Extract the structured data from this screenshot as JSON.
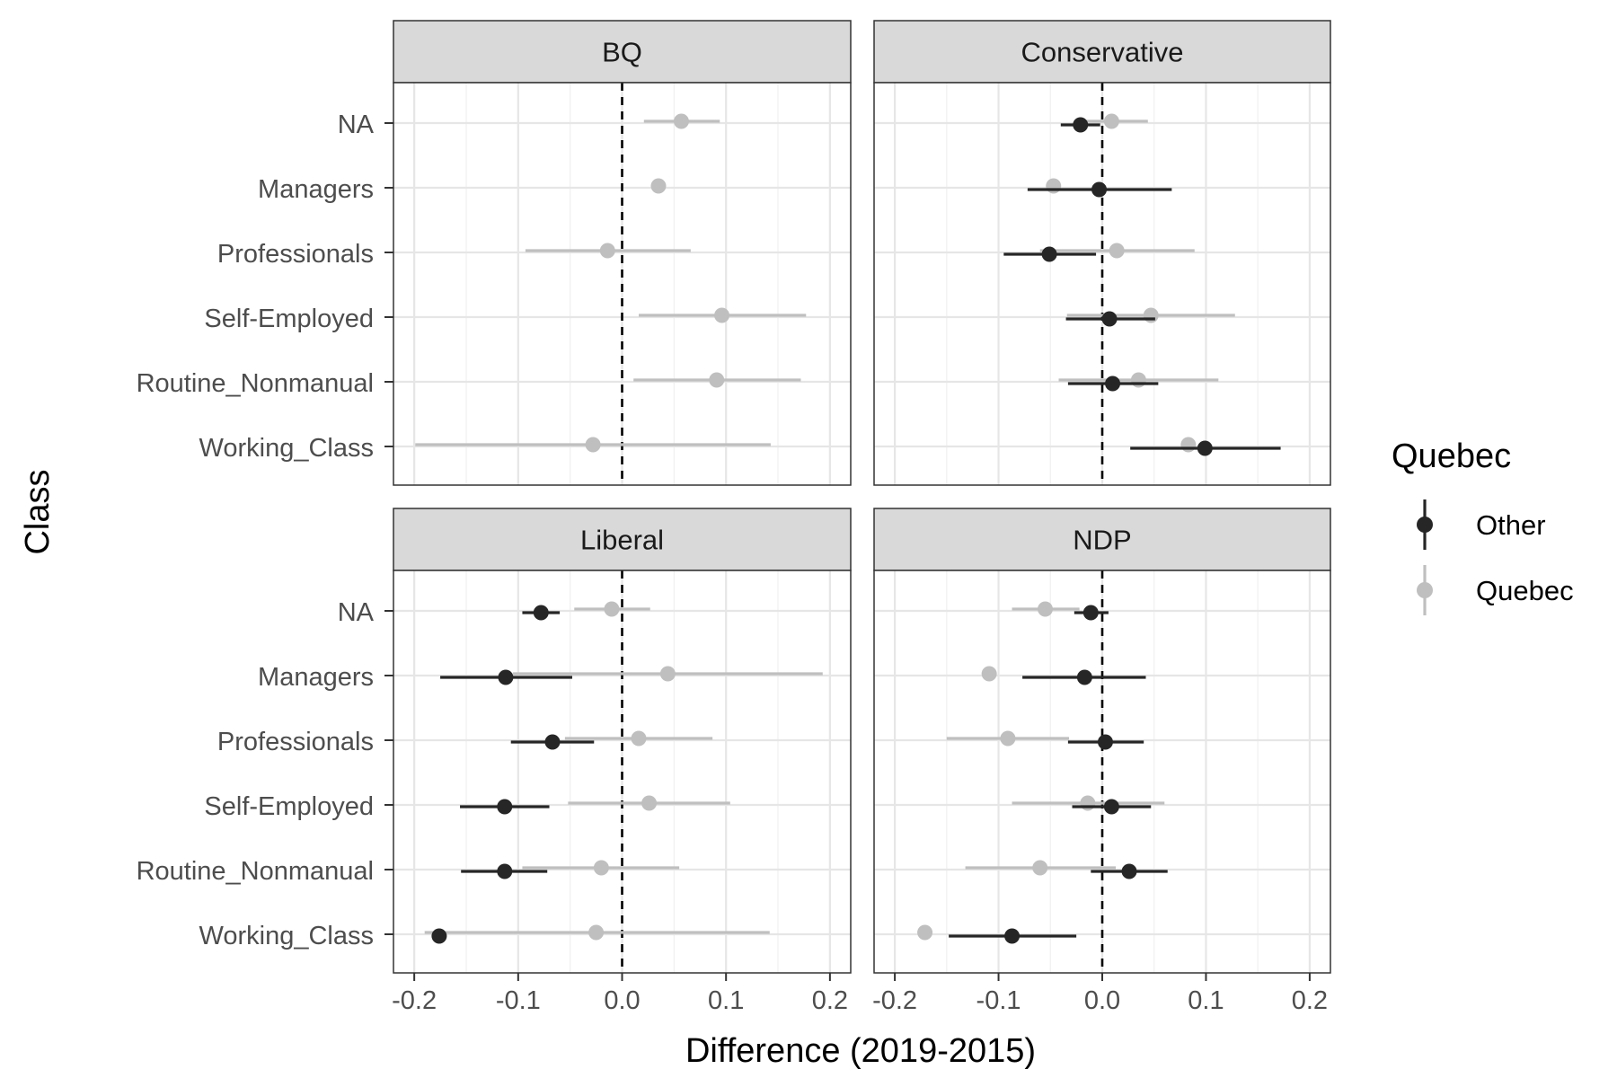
{
  "chart_data": {
    "type": "scatter",
    "xlabel": "Difference (2019-2015)",
    "ylabel": "Class",
    "xlim": [
      -0.22,
      0.22
    ],
    "x_ticks": [
      -0.2,
      -0.1,
      0.0,
      0.1,
      0.2
    ],
    "x_tick_labels": [
      "-0.2",
      "-0.1",
      "0.0",
      "0.1",
      "0.2"
    ],
    "categories": [
      "NA",
      "Managers",
      "Professionals",
      "Self-Employed",
      "Routine_Nonmanual",
      "Working_Class"
    ],
    "reference_line_x": 0,
    "grid": true,
    "legend": {
      "title": "Quebec",
      "position": "right",
      "entries": [
        {
          "name": "Other",
          "color": "#262626"
        },
        {
          "name": "Quebec",
          "color": "#bfbfbf"
        }
      ]
    },
    "facets": [
      {
        "title": "BQ",
        "series": [
          {
            "name": "Quebec",
            "points": [
              {
                "category": "NA",
                "x": 0.057,
                "lo": 0.021,
                "hi": 0.094
              },
              {
                "category": "Managers",
                "x": 0.035,
                "lo": null,
                "hi": null
              },
              {
                "category": "Professionals",
                "x": -0.014,
                "lo": -0.093,
                "hi": 0.066
              },
              {
                "category": "Self-Employed",
                "x": 0.096,
                "lo": 0.016,
                "hi": 0.177
              },
              {
                "category": "Routine_Nonmanual",
                "x": 0.091,
                "lo": 0.011,
                "hi": 0.172
              },
              {
                "category": "Working_Class",
                "x": -0.028,
                "lo": -0.199,
                "hi": 0.143
              }
            ]
          }
        ]
      },
      {
        "title": "Conservative",
        "series": [
          {
            "name": "Quebec",
            "points": [
              {
                "category": "NA",
                "x": 0.009,
                "lo": -0.027,
                "hi": 0.044
              },
              {
                "category": "Managers",
                "x": -0.047,
                "lo": null,
                "hi": null
              },
              {
                "category": "Professionals",
                "x": 0.014,
                "lo": -0.06,
                "hi": 0.089
              },
              {
                "category": "Self-Employed",
                "x": 0.047,
                "lo": -0.034,
                "hi": 0.128
              },
              {
                "category": "Routine_Nonmanual",
                "x": 0.035,
                "lo": -0.042,
                "hi": 0.112
              },
              {
                "category": "Working_Class",
                "x": 0.083,
                "lo": null,
                "hi": null
              }
            ]
          },
          {
            "name": "Other",
            "points": [
              {
                "category": "NA",
                "x": -0.021,
                "lo": -0.04,
                "hi": -0.002
              },
              {
                "category": "Managers",
                "x": -0.003,
                "lo": -0.072,
                "hi": 0.067
              },
              {
                "category": "Professionals",
                "x": -0.051,
                "lo": -0.095,
                "hi": -0.006
              },
              {
                "category": "Self-Employed",
                "x": 0.007,
                "lo": -0.035,
                "hi": 0.051
              },
              {
                "category": "Routine_Nonmanual",
                "x": 0.01,
                "lo": -0.033,
                "hi": 0.054
              },
              {
                "category": "Working_Class",
                "x": 0.099,
                "lo": 0.027,
                "hi": 0.172
              }
            ]
          }
        ]
      },
      {
        "title": "Liberal",
        "series": [
          {
            "name": "Quebec",
            "points": [
              {
                "category": "NA",
                "x": -0.01,
                "lo": -0.046,
                "hi": 0.027
              },
              {
                "category": "Managers",
                "x": 0.044,
                "lo": -0.105,
                "hi": 0.193
              },
              {
                "category": "Professionals",
                "x": 0.016,
                "lo": -0.055,
                "hi": 0.087
              },
              {
                "category": "Self-Employed",
                "x": 0.026,
                "lo": -0.052,
                "hi": 0.104
              },
              {
                "category": "Routine_Nonmanual",
                "x": -0.02,
                "lo": -0.096,
                "hi": 0.055
              },
              {
                "category": "Working_Class",
                "x": -0.025,
                "lo": -0.19,
                "hi": 0.142
              }
            ]
          },
          {
            "name": "Other",
            "points": [
              {
                "category": "NA",
                "x": -0.078,
                "lo": -0.096,
                "hi": -0.06
              },
              {
                "category": "Managers",
                "x": -0.112,
                "lo": -0.175,
                "hi": -0.048
              },
              {
                "category": "Professionals",
                "x": -0.067,
                "lo": -0.107,
                "hi": -0.027
              },
              {
                "category": "Self-Employed",
                "x": -0.113,
                "lo": -0.156,
                "hi": -0.07
              },
              {
                "category": "Routine_Nonmanual",
                "x": -0.113,
                "lo": -0.155,
                "hi": -0.072
              },
              {
                "category": "Working_Class",
                "x": -0.176,
                "lo": null,
                "hi": null
              }
            ]
          }
        ]
      },
      {
        "title": "NDP",
        "series": [
          {
            "name": "Quebec",
            "points": [
              {
                "category": "NA",
                "x": -0.055,
                "lo": -0.087,
                "hi": -0.022
              },
              {
                "category": "Managers",
                "x": -0.109,
                "lo": null,
                "hi": null
              },
              {
                "category": "Professionals",
                "x": -0.091,
                "lo": -0.15,
                "hi": -0.032
              },
              {
                "category": "Self-Employed",
                "x": -0.014,
                "lo": -0.087,
                "hi": 0.06
              },
              {
                "category": "Routine_Nonmanual",
                "x": -0.06,
                "lo": -0.132,
                "hi": 0.013
              },
              {
                "category": "Working_Class",
                "x": -0.171,
                "lo": null,
                "hi": null
              }
            ]
          },
          {
            "name": "Other",
            "points": [
              {
                "category": "NA",
                "x": -0.011,
                "lo": -0.027,
                "hi": 0.006
              },
              {
                "category": "Managers",
                "x": -0.017,
                "lo": -0.077,
                "hi": 0.042
              },
              {
                "category": "Professionals",
                "x": 0.003,
                "lo": -0.033,
                "hi": 0.04
              },
              {
                "category": "Self-Employed",
                "x": 0.009,
                "lo": -0.029,
                "hi": 0.047
              },
              {
                "category": "Routine_Nonmanual",
                "x": 0.026,
                "lo": -0.011,
                "hi": 0.063
              },
              {
                "category": "Working_Class",
                "x": -0.087,
                "lo": -0.148,
                "hi": -0.025
              }
            ]
          }
        ]
      }
    ]
  }
}
